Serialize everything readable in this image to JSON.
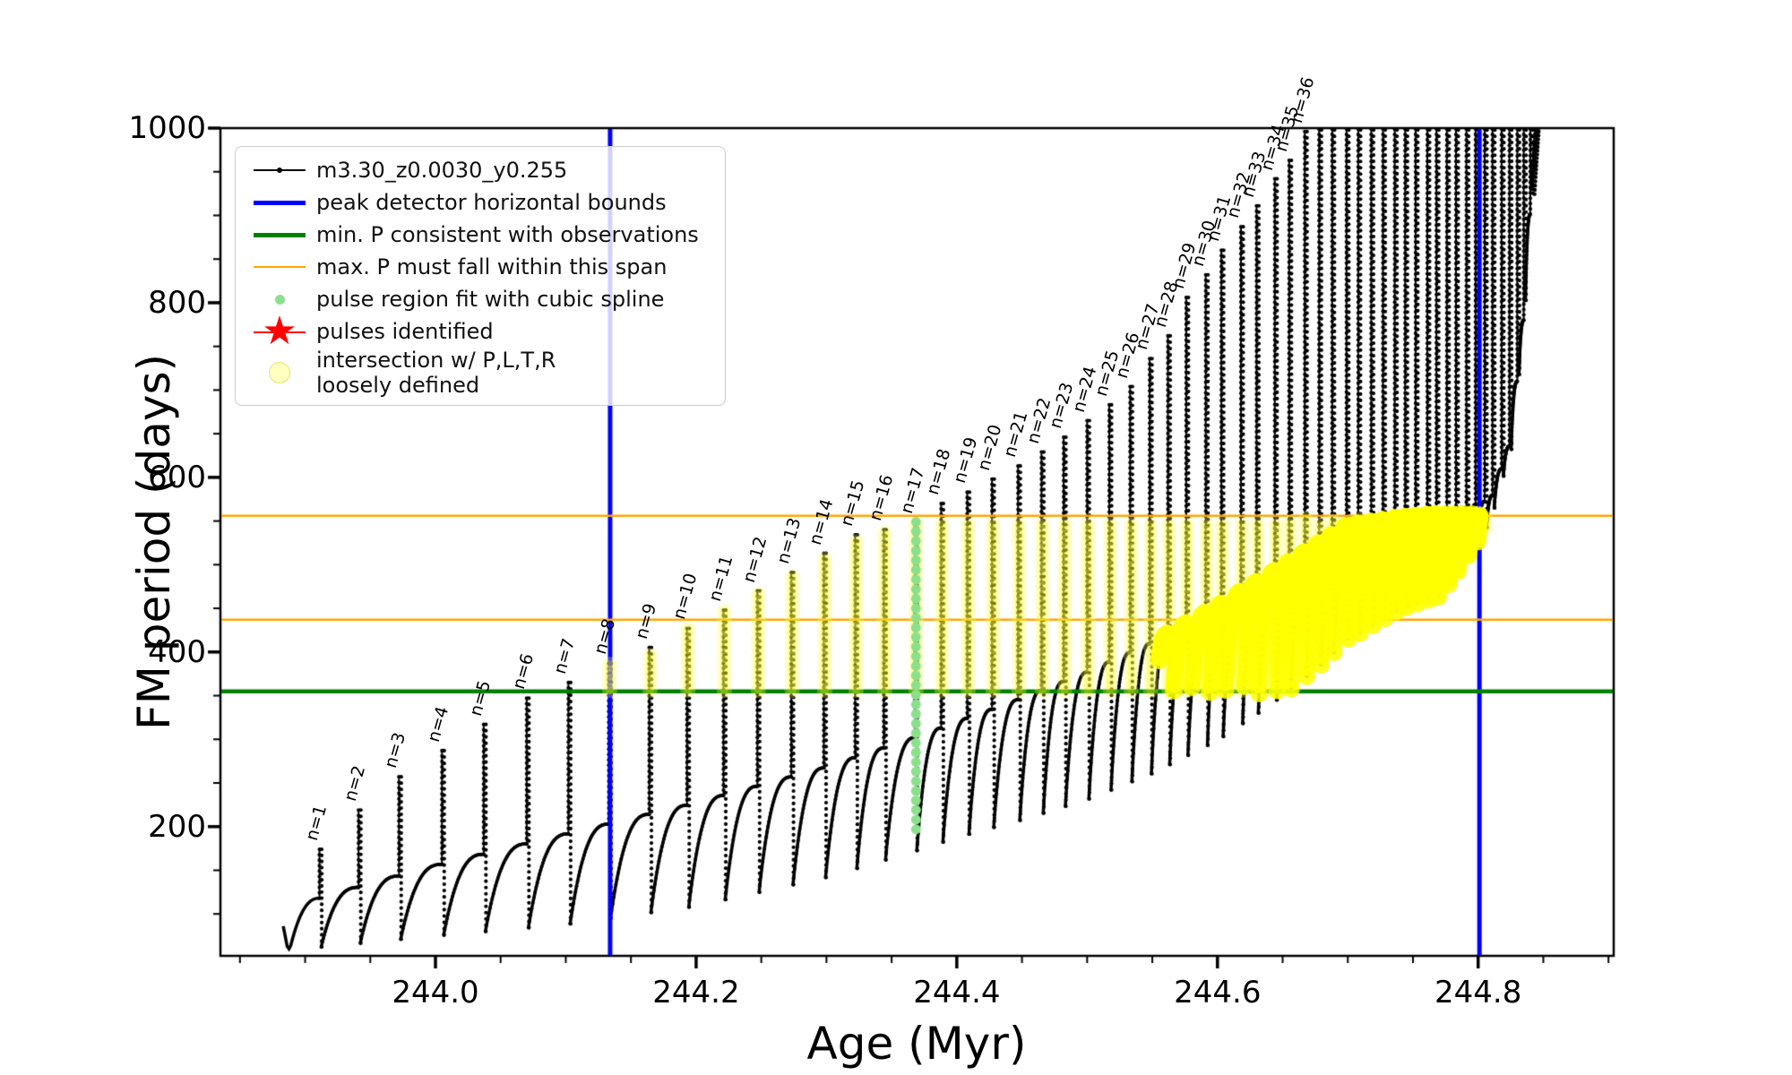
{
  "legend": {
    "entries": [
      {
        "label": "m3.30_z0.0030_y0.255",
        "marker": "line-dot",
        "color": "#000000"
      },
      {
        "label": "peak detector horizontal bounds",
        "marker": "thick-line",
        "color": "#0000ff"
      },
      {
        "label": "min. P consistent with observations",
        "marker": "thick-line",
        "color": "#008000"
      },
      {
        "label": "max. P must fall within this span",
        "marker": "thin-line",
        "color": "#ffa500"
      },
      {
        "label": "pulse region fit with cubic spline",
        "marker": "small-dot",
        "color": "#8ce08c"
      },
      {
        "label": "pulses identified",
        "marker": "star",
        "color": "#ff0000"
      },
      {
        "label": "intersection w/ P,L,T,R\nloosely defined",
        "marker": "pale-circle",
        "color": "#ffff99"
      }
    ]
  },
  "chart_data": {
    "type": "line",
    "title": "",
    "xlabel": "Age (Myr)",
    "ylabel": "FM period (days)",
    "xlim": [
      243.835,
      244.904
    ],
    "ylim": [
      52,
      1000
    ],
    "x_major_ticks": [
      {
        "v": 244.0,
        "label": "244.0"
      },
      {
        "v": 244.2,
        "label": "244.2"
      },
      {
        "v": 244.4,
        "label": "244.4"
      },
      {
        "v": 244.6,
        "label": "244.6"
      },
      {
        "v": 244.8,
        "label": "244.8"
      }
    ],
    "y_major_ticks": [
      {
        "v": 200,
        "label": "200"
      },
      {
        "v": 400,
        "label": "400"
      },
      {
        "v": 600,
        "label": "600"
      },
      {
        "v": 800,
        "label": "800"
      },
      {
        "v": 1000,
        "label": "1000"
      }
    ],
    "x_minor_step": 0.05,
    "y_minor_step": 50,
    "grid": false,
    "legend_position": "upper left",
    "series_name": "m3.30_z0.0030_y0.255",
    "peak_detector_bounds_age": [
      244.134,
      244.801
    ],
    "min_P_line": 355,
    "max_P_span_lines": [
      437,
      556
    ],
    "intersection_region": {
      "p_min": 356,
      "p_max": 554,
      "age_min": 244.13,
      "age_max": 244.806
    },
    "spline_fit_pulse": {
      "n": 17,
      "age": 244.368,
      "p_top": 549,
      "p_bottom": 190
    },
    "pulses_identified": [],
    "pulses": [
      {
        "n": 1,
        "label": "n=1",
        "age": 243.911,
        "peak": 174
      },
      {
        "n": 2,
        "label": "n=2",
        "age": 243.941,
        "peak": 219
      },
      {
        "n": 3,
        "label": "n=3",
        "age": 243.972,
        "peak": 257
      },
      {
        "n": 4,
        "label": "n=4",
        "age": 244.005,
        "peak": 287
      },
      {
        "n": 5,
        "label": "n=5",
        "age": 244.037,
        "peak": 317
      },
      {
        "n": 6,
        "label": "n=6",
        "age": 244.07,
        "peak": 347
      },
      {
        "n": 7,
        "label": "n=7",
        "age": 244.102,
        "peak": 365
      },
      {
        "n": 8,
        "label": "n=8",
        "age": 244.133,
        "peak": 387
      },
      {
        "n": 9,
        "label": "n=9",
        "age": 244.164,
        "peak": 405
      },
      {
        "n": 10,
        "label": "n=10",
        "age": 244.193,
        "peak": 427
      },
      {
        "n": 11,
        "label": "n=11",
        "age": 244.221,
        "peak": 448
      },
      {
        "n": 12,
        "label": "n=12",
        "age": 244.247,
        "peak": 470
      },
      {
        "n": 13,
        "label": "n=13",
        "age": 244.273,
        "peak": 491
      },
      {
        "n": 14,
        "label": "n=14",
        "age": 244.298,
        "peak": 513
      },
      {
        "n": 15,
        "label": "n=15",
        "age": 244.322,
        "peak": 534
      },
      {
        "n": 16,
        "label": "n=16",
        "age": 244.344,
        "peak": 540
      },
      {
        "n": 17,
        "label": "n=17",
        "age": 244.368,
        "peak": 549
      },
      {
        "n": 18,
        "label": "n=18",
        "age": 244.388,
        "peak": 570
      },
      {
        "n": 19,
        "label": "n=19",
        "age": 244.408,
        "peak": 583
      },
      {
        "n": 20,
        "label": "n=20",
        "age": 244.427,
        "peak": 598
      },
      {
        "n": 21,
        "label": "n=21",
        "age": 244.447,
        "peak": 613
      },
      {
        "n": 22,
        "label": "n=22",
        "age": 244.465,
        "peak": 629
      },
      {
        "n": 23,
        "label": "n=23",
        "age": 244.482,
        "peak": 646
      },
      {
        "n": 24,
        "label": "n=24",
        "age": 244.5,
        "peak": 665
      },
      {
        "n": 25,
        "label": "n=25",
        "age": 244.517,
        "peak": 683
      },
      {
        "n": 26,
        "label": "n=26",
        "age": 244.533,
        "peak": 704
      },
      {
        "n": 27,
        "label": "n=27",
        "age": 244.548,
        "peak": 736
      },
      {
        "n": 28,
        "label": "n=28",
        "age": 244.562,
        "peak": 762
      },
      {
        "n": 29,
        "label": "n=29",
        "age": 244.576,
        "peak": 806
      },
      {
        "n": 30,
        "label": "n=30",
        "age": 244.591,
        "peak": 832
      },
      {
        "n": 31,
        "label": "n=31",
        "age": 244.603,
        "peak": 860
      },
      {
        "n": 32,
        "label": "n=32",
        "age": 244.618,
        "peak": 887
      },
      {
        "n": 33,
        "label": "n=33",
        "age": 244.63,
        "peak": 911
      },
      {
        "n": 34,
        "label": "n=34",
        "age": 244.644,
        "peak": 942
      },
      {
        "n": 35,
        "label": "n=35",
        "age": 244.655,
        "peak": 963
      },
      {
        "n": 36,
        "label": "n=36",
        "age": 244.667,
        "peak": 996
      }
    ],
    "unlabeled_pulse_ages": [
      244.678,
      244.688,
      244.699,
      244.708,
      244.718,
      244.727,
      244.736,
      244.744,
      244.752,
      244.761,
      244.768,
      244.776,
      244.783,
      244.791,
      244.798,
      244.805,
      244.811,
      244.818,
      244.824,
      244.83,
      244.835,
      244.84
    ],
    "interpulse_shoulder_anchors": [
      [
        243.884,
        100
      ],
      [
        243.911,
        118
      ],
      [
        244.0,
        155
      ],
      [
        244.1,
        191
      ],
      [
        244.2,
        227
      ],
      [
        244.3,
        268
      ],
      [
        244.368,
        302
      ],
      [
        244.45,
        347
      ],
      [
        244.5,
        377
      ],
      [
        244.55,
        411
      ],
      [
        244.6,
        452
      ],
      [
        244.65,
        498
      ],
      [
        244.7,
        545
      ],
      [
        244.74,
        554
      ],
      [
        244.78,
        560
      ],
      [
        244.81,
        575
      ],
      [
        244.825,
        640
      ],
      [
        244.835,
        780
      ],
      [
        244.842,
        950
      ],
      [
        244.848,
        1080
      ]
    ],
    "dip_depth_anchors": [
      [
        243.884,
        40
      ],
      [
        243.911,
        56
      ],
      [
        244.0,
        80
      ],
      [
        244.1,
        103
      ],
      [
        244.2,
        118
      ],
      [
        244.3,
        126
      ],
      [
        244.4,
        132
      ],
      [
        244.5,
        146
      ],
      [
        244.55,
        150
      ],
      [
        244.6,
        153
      ],
      [
        244.64,
        150
      ],
      [
        244.68,
        140
      ],
      [
        244.71,
        125
      ],
      [
        244.74,
        105
      ],
      [
        244.77,
        95
      ],
      [
        244.8,
        42
      ],
      [
        244.815,
        15
      ],
      [
        244.85,
        5
      ]
    ],
    "colors": {
      "series": "#000000",
      "peak_detector": "#0000ff",
      "min_P": "#008000",
      "max_P_span": "#ffa500",
      "spline_dots": "#8ce08c",
      "pulses_star": "#ff0000",
      "intersection_bright": "#ffff00",
      "intersection_pale": "#ffff55"
    }
  }
}
